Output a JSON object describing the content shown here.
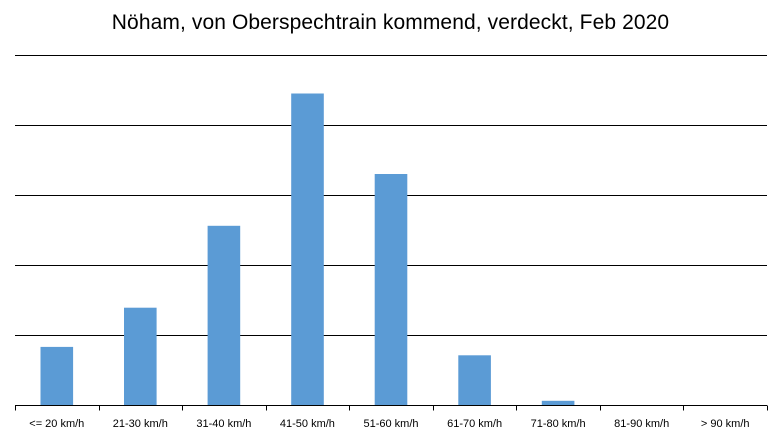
{
  "chart_data": {
    "type": "bar",
    "title": "Nöham, von Oberspechtrain kommend, verdeckt, Feb 2020",
    "categories": [
      "<= 20 km/h",
      "21-30 km/h",
      "31-40 km/h",
      "41-50 km/h",
      "51-60 km/h",
      "61-70 km/h",
      "71-80 km/h",
      "81-90 km/h",
      "> 90 km/h"
    ],
    "values": [
      0.83,
      1.39,
      2.56,
      4.45,
      3.3,
      0.71,
      0.06,
      0,
      0
    ],
    "ylim": [
      0,
      5
    ],
    "grid": true,
    "bar_color": "#5b9bd5",
    "grid_color": "#000000",
    "legend": false,
    "xlabel": "",
    "ylabel": ""
  }
}
